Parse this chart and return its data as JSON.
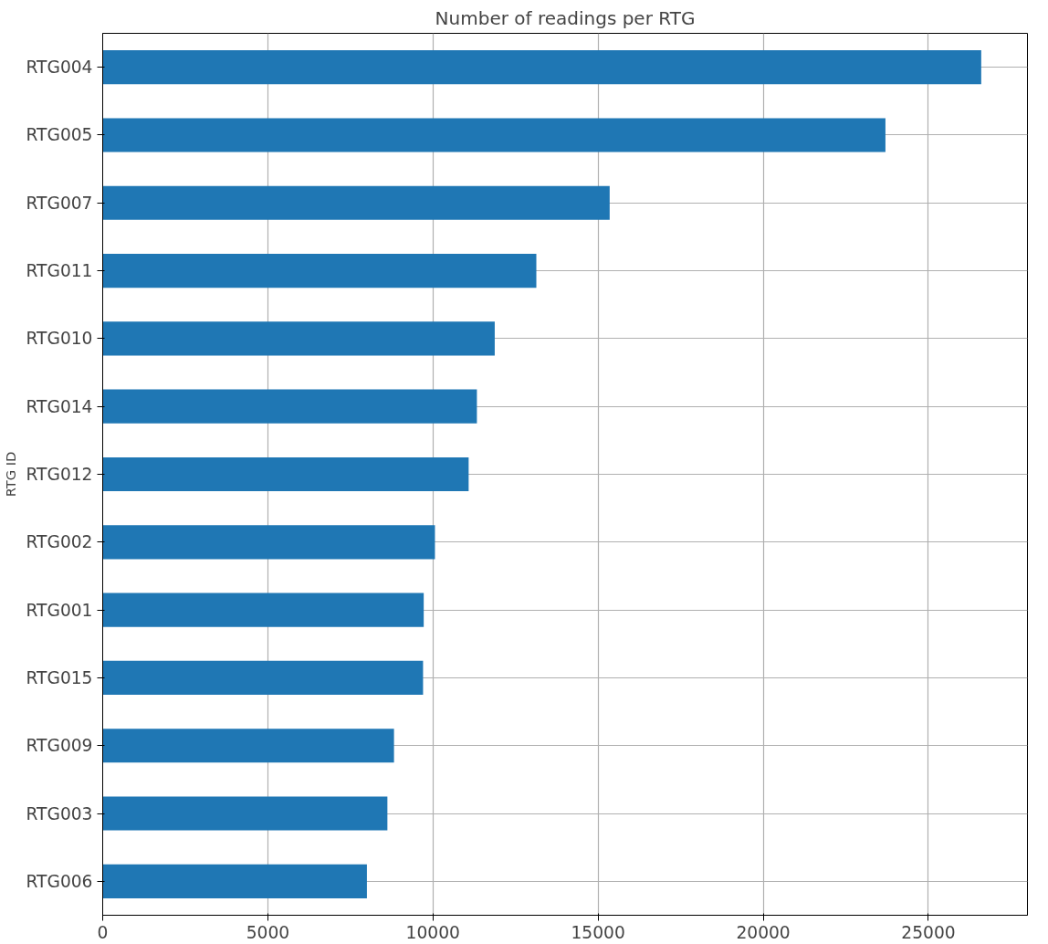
{
  "chart_data": {
    "type": "bar",
    "orientation": "horizontal",
    "title": "Number of readings per RTG",
    "ylabel": "RTG ID",
    "categories": [
      "RTG004",
      "RTG005",
      "RTG007",
      "RTG011",
      "RTG010",
      "RTG014",
      "RTG012",
      "RTG002",
      "RTG001",
      "RTG015",
      "RTG009",
      "RTG003",
      "RTG006"
    ],
    "values": [
      26600,
      23700,
      15350,
      13130,
      11870,
      11330,
      11080,
      10060,
      9720,
      9700,
      8820,
      8620,
      8000
    ],
    "color": "#1f77b4",
    "xlim": [
      0,
      28000
    ],
    "xticks": [
      0,
      5000,
      10000,
      15000,
      20000,
      25000
    ],
    "grid": true
  }
}
